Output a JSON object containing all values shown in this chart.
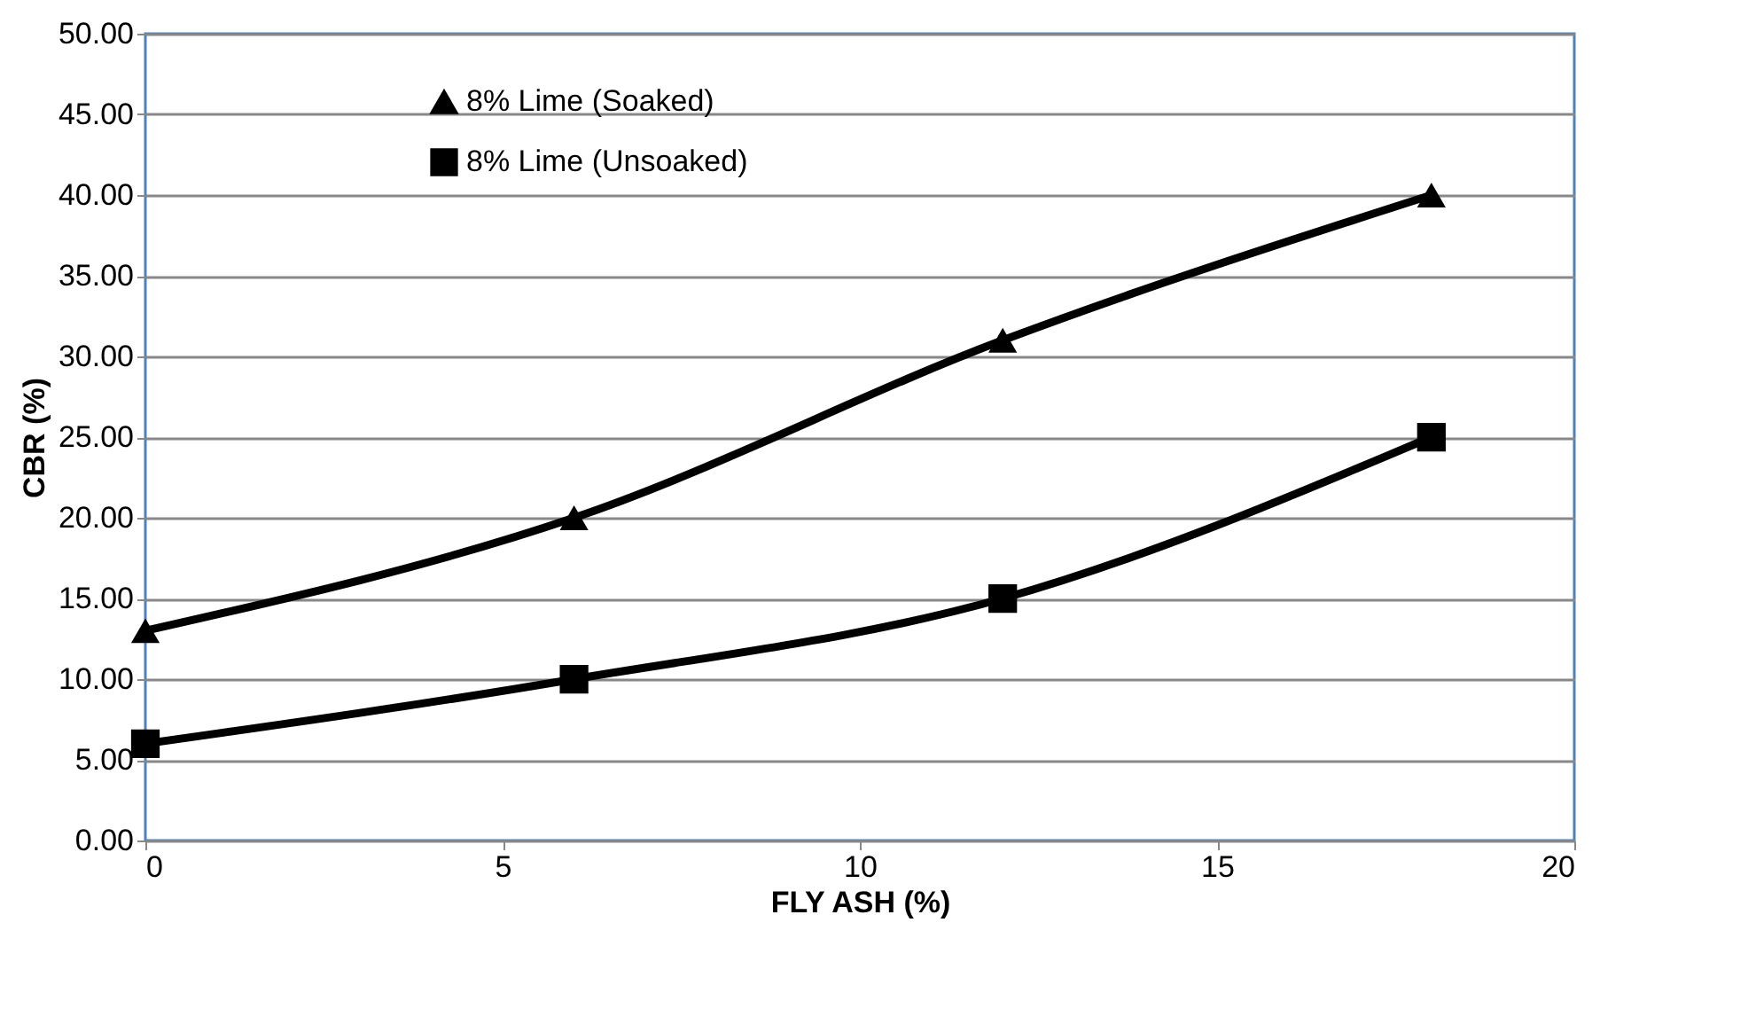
{
  "chart_data": {
    "type": "line",
    "xlabel": "FLY ASH (%)",
    "ylabel": "CBR (%)",
    "x": [
      0,
      6,
      12,
      18
    ],
    "series": [
      {
        "name": "8% Lime (Soaked)",
        "color": "#000000",
        "marker": "triangle",
        "values": [
          13,
          20,
          31,
          40
        ]
      },
      {
        "name": "8% Lime (Unsoaked)",
        "color": "#000000",
        "marker": "square",
        "values": [
          6,
          10,
          15,
          25
        ]
      }
    ],
    "xlim": [
      0,
      20
    ],
    "xticks": [
      0,
      5,
      10,
      15,
      20
    ],
    "ylim": [
      0,
      50
    ],
    "yticks": [
      {
        "value": 0,
        "label": "0.00"
      },
      {
        "value": 5,
        "label": "5.00"
      },
      {
        "value": 10,
        "label": "10.00"
      },
      {
        "value": 15,
        "label": "15.00"
      },
      {
        "value": 20,
        "label": "20.00"
      },
      {
        "value": 25,
        "label": "25.00"
      },
      {
        "value": 30,
        "label": "30.00"
      },
      {
        "value": 35,
        "label": "35.00"
      },
      {
        "value": 40,
        "label": "40.00"
      },
      {
        "value": 45,
        "label": "45.00"
      },
      {
        "value": 50,
        "label": "50.00"
      }
    ],
    "grid": "y",
    "legend": "top left",
    "line_style": "solid"
  }
}
